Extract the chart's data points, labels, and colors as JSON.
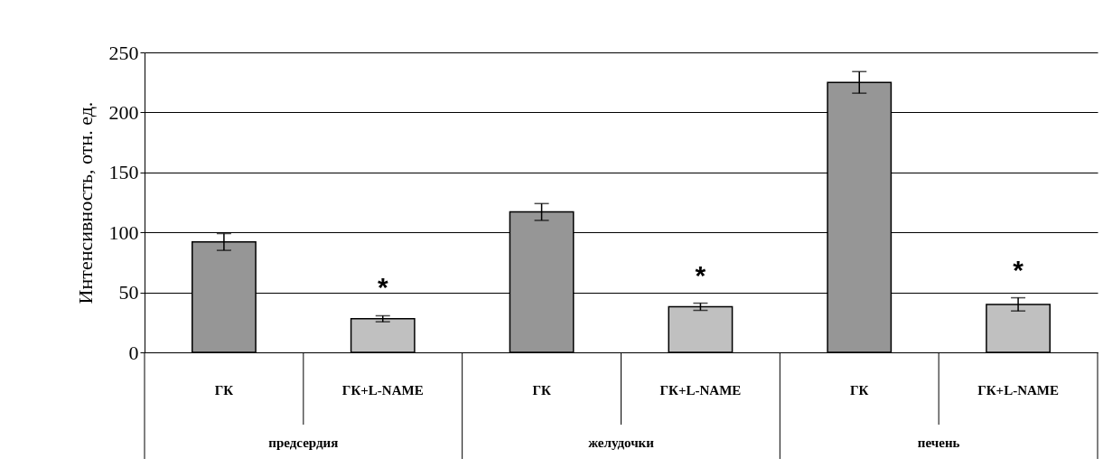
{
  "chart_data": {
    "type": "bar",
    "ylabel": "Интенсивность, отн. ед.",
    "categories": [
      "ГК",
      "ГК+L-NAME",
      "ГК",
      "ГК+L-NAME",
      "ГК",
      "ГК+L-NAME"
    ],
    "values": [
      92,
      28,
      117,
      38,
      225,
      40
    ],
    "errors": [
      7,
      2.5,
      7,
      3,
      9,
      5.5
    ],
    "colors": [
      "#969696",
      "#c0c0c0",
      "#969696",
      "#c0c0c0",
      "#969696",
      "#c0c0c0"
    ],
    "ylim": [
      0,
      250
    ],
    "yticks": [
      0,
      50,
      100,
      150,
      200,
      250
    ],
    "grid": "y",
    "annotations": [
      "*",
      "*",
      "*",
      "предсердия",
      "желудочки",
      "печень"
    ]
  }
}
